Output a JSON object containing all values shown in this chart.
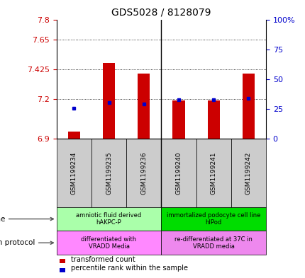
{
  "title": "GDS5028 / 8128079",
  "samples": [
    "GSM1199234",
    "GSM1199235",
    "GSM1199236",
    "GSM1199240",
    "GSM1199241",
    "GSM1199242"
  ],
  "red_values": [
    6.955,
    7.47,
    7.39,
    7.19,
    7.19,
    7.39
  ],
  "blue_values": [
    7.13,
    7.175,
    7.165,
    7.195,
    7.195,
    7.205
  ],
  "ylim_left": [
    6.9,
    7.8
  ],
  "ylim_right": [
    0,
    100
  ],
  "yticks_left": [
    6.9,
    7.2,
    7.425,
    7.65,
    7.8
  ],
  "ytick_labels_left": [
    "6.9",
    "7.2",
    "7.425",
    "7.65",
    "7.8"
  ],
  "yticks_right": [
    0,
    25,
    50,
    75,
    100
  ],
  "ytick_labels_right": [
    "0",
    "25",
    "50",
    "75",
    "100%"
  ],
  "hlines": [
    7.65,
    7.425,
    7.2
  ],
  "bar_bottom": 6.9,
  "red_color": "#cc0000",
  "blue_color": "#0000cc",
  "cell_line_groups": [
    {
      "label": "amniotic fluid derived\nhAKPC-P",
      "start": 0,
      "end": 3,
      "color": "#aaffaa"
    },
    {
      "label": "immortalized podocyte cell line\nhIPod",
      "start": 3,
      "end": 6,
      "color": "#00dd00"
    }
  ],
  "growth_protocol_groups": [
    {
      "label": "differentiated with\nVRADD Media",
      "start": 0,
      "end": 3,
      "color": "#ff88ff"
    },
    {
      "label": "re-differentiated at 37C in\nVRADD media",
      "start": 3,
      "end": 6,
      "color": "#ee88ee"
    }
  ],
  "cell_line_label": "cell line",
  "growth_protocol_label": "growth protocol",
  "legend_red": "transformed count",
  "legend_blue": "percentile rank within the sample",
  "bg_color": "#ffffff",
  "plot_bg": "#ffffff",
  "tick_color_left": "#cc0000",
  "tick_color_right": "#0000cc",
  "bar_width": 0.35,
  "sample_box_color": "#cccccc"
}
